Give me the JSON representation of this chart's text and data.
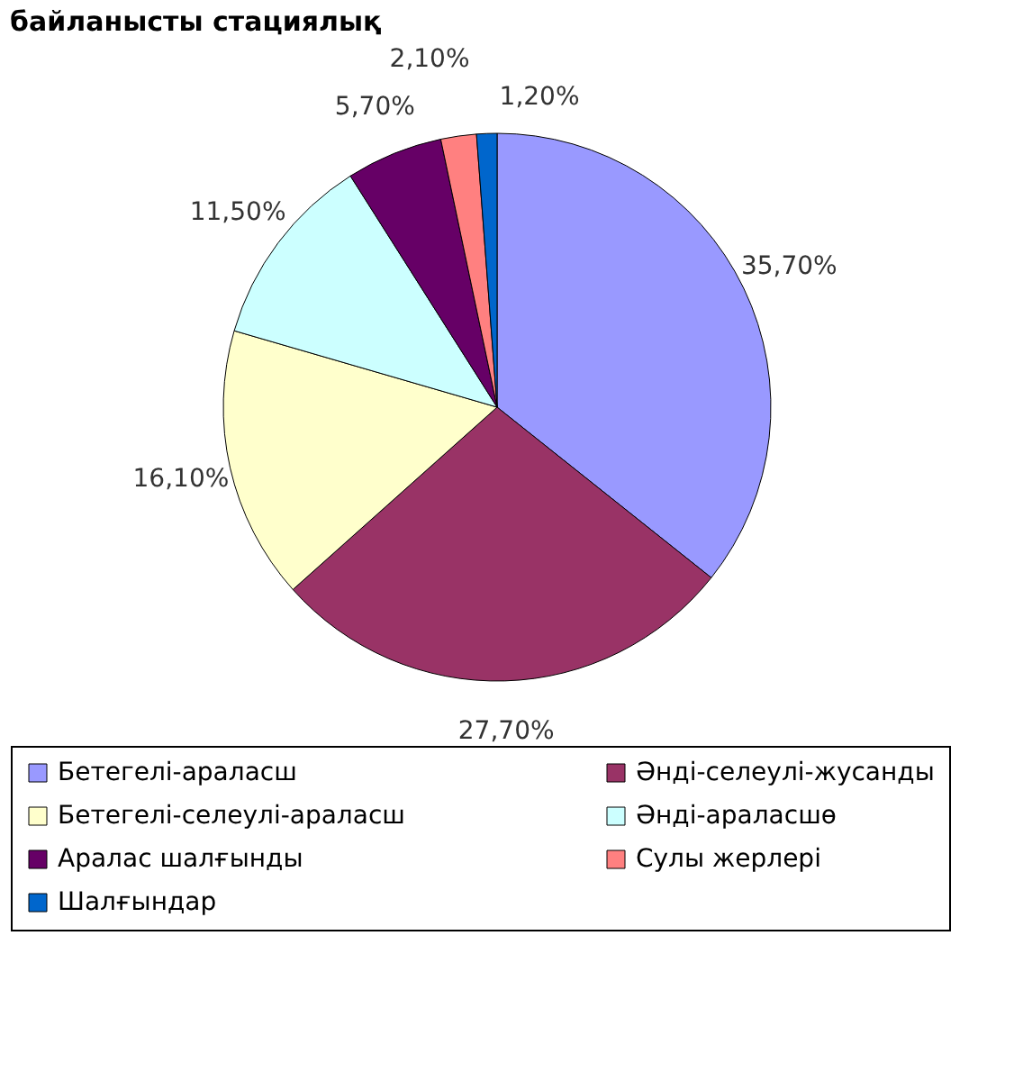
{
  "chart_data": {
    "type": "pie",
    "title": "байланысты стациялық",
    "categories": [
      "Бетегелі-араласш",
      "Әнді-селеулі-жусанды",
      "Бетегелі-селеулі-араласш",
      "Әнді-араласшө",
      "Аралас шалғынды",
      "Сулы жерлері",
      "Шалғындар"
    ],
    "values": [
      35.7,
      27.7,
      16.1,
      11.5,
      5.7,
      2.1,
      1.2
    ],
    "colors": [
      "#9999ff",
      "#993366",
      "#ffffcc",
      "#ccffff",
      "#660066",
      "#ff8080",
      "#0066cc"
    ],
    "value_labels": [
      "35,70%",
      "27,70%",
      "16,10%",
      "11,50%",
      "5,70%",
      "2,10%",
      "1,20%"
    ],
    "legend": "bottom"
  }
}
